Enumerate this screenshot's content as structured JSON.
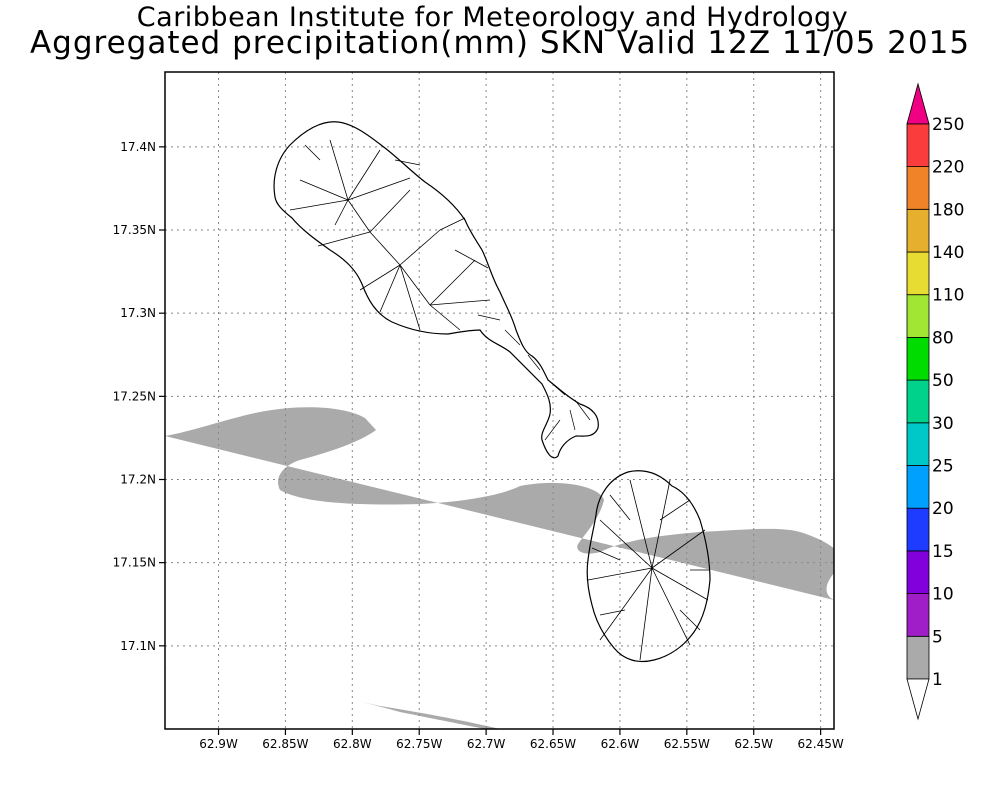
{
  "title": {
    "line1": "Caribbean Institute for Meteorology and Hydrology",
    "line2": "Aggregated precipitation(mm) SKN Valid 12Z 11/05 2015"
  },
  "map": {
    "lon_range": [
      -62.94,
      -62.44
    ],
    "lat_range": [
      17.05,
      17.445
    ],
    "lon_ticks": [
      {
        "value": -62.9,
        "label": "62.9W"
      },
      {
        "value": -62.85,
        "label": "62.85W"
      },
      {
        "value": -62.8,
        "label": "62.8W"
      },
      {
        "value": -62.75,
        "label": "62.75W"
      },
      {
        "value": -62.7,
        "label": "62.7W"
      },
      {
        "value": -62.65,
        "label": "62.65W"
      },
      {
        "value": -62.6,
        "label": "62.6W"
      },
      {
        "value": -62.55,
        "label": "62.55W"
      },
      {
        "value": -62.5,
        "label": "62.5W"
      },
      {
        "value": -62.45,
        "label": "62.45W"
      }
    ],
    "lat_ticks": [
      {
        "value": 17.4,
        "label": "17.4N"
      },
      {
        "value": 17.35,
        "label": "17.35N"
      },
      {
        "value": 17.3,
        "label": "17.3N"
      },
      {
        "value": 17.25,
        "label": "17.25N"
      },
      {
        "value": 17.2,
        "label": "17.2N"
      },
      {
        "value": 17.15,
        "label": "17.15N"
      },
      {
        "value": 17.1,
        "label": "17.1N"
      }
    ],
    "grid": true,
    "precip_band_color": "#aaaaaa",
    "islands": [
      "St Kitts",
      "Nevis"
    ]
  },
  "colorbar": {
    "levels": [
      {
        "label": "1",
        "color": "#ffffff"
      },
      {
        "label": "5",
        "color": "#aaaaaa"
      },
      {
        "label": "10",
        "color": "#a01ec8"
      },
      {
        "label": "15",
        "color": "#8200dc"
      },
      {
        "label": "20",
        "color": "#1e3cff"
      },
      {
        "label": "25",
        "color": "#00a0ff"
      },
      {
        "label": "30",
        "color": "#00c8c8"
      },
      {
        "label": "50",
        "color": "#00d28c"
      },
      {
        "label": "80",
        "color": "#00dc00"
      },
      {
        "label": "110",
        "color": "#a0e632"
      },
      {
        "label": "140",
        "color": "#e6dc32"
      },
      {
        "label": "180",
        "color": "#e6af2d"
      },
      {
        "label": "220",
        "color": "#f08228"
      },
      {
        "label": "250",
        "color": "#fa3c3c"
      }
    ],
    "top_arrow_color": "#f00082",
    "bottom_arrow_color": "#ffffff"
  }
}
